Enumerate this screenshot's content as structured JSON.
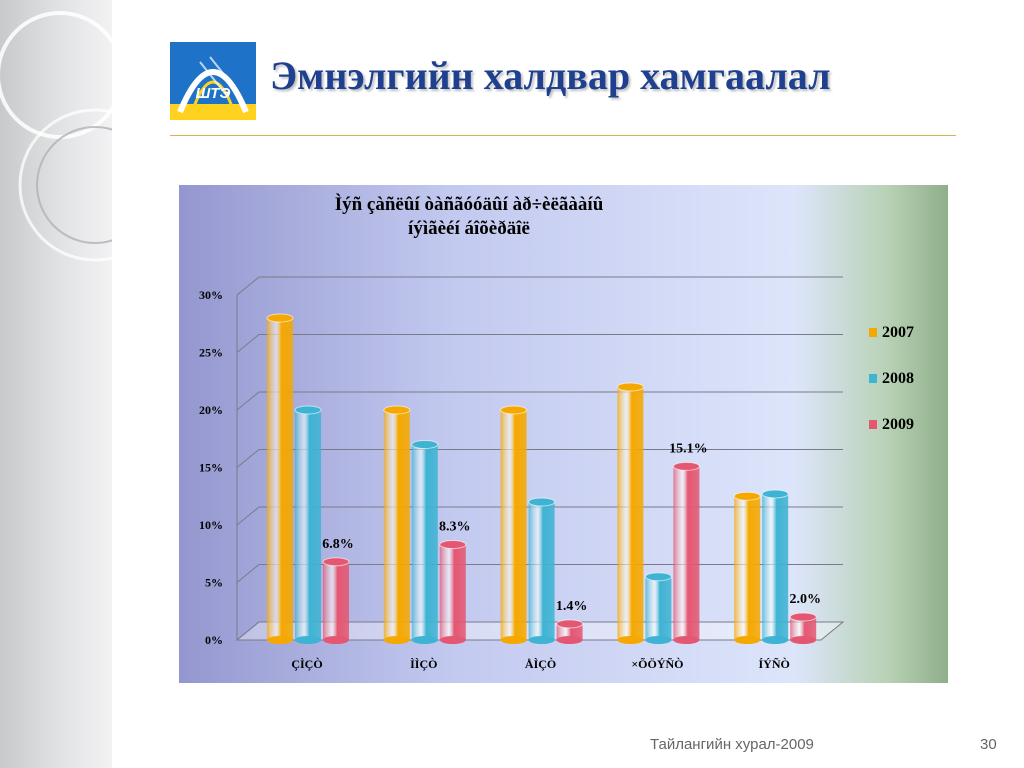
{
  "slide": {
    "title": "Эмнэлгийн халдвар хамгаалал",
    "logo_text": "ШТЭ",
    "footer": "Тайлангийн хурал-2009",
    "page_number": "30"
  },
  "colors": {
    "series_2007": "#f5a800",
    "series_2008": "#3fb3d3",
    "series_2009": "#e45772",
    "title": "#1f3f8f"
  },
  "chart_data": {
    "type": "bar",
    "title_lines": [
      "Ìýñ çàñëûí òàñãóóäûí àð÷èëãààíû",
      "íýìãèéí áîõèðäîë"
    ],
    "categories": [
      "ÇÌÇÒ",
      "ÌÌÇÒ",
      "ÅÌÇÒ",
      "×ÕÖÝÑÒ",
      "ÍÝÑÒ"
    ],
    "series": [
      {
        "name": "2007",
        "values": [
          28,
          20,
          20,
          22,
          12.5
        ]
      },
      {
        "name": "2008",
        "values": [
          20,
          17,
          12,
          5.5,
          12.7
        ]
      },
      {
        "name": "2009",
        "values": [
          6.8,
          8.3,
          1.4,
          15.1,
          2.0
        ]
      }
    ],
    "data_labels": {
      "2009": [
        "6.8%",
        "8.3%",
        "1.4%",
        "15.1%",
        "2.0%"
      ]
    },
    "y_ticks": [
      "0%",
      "5%",
      "10%",
      "15%",
      "20%",
      "25%",
      "30%"
    ],
    "ylim": [
      0,
      30
    ],
    "grid": true,
    "legend_position": "right"
  }
}
